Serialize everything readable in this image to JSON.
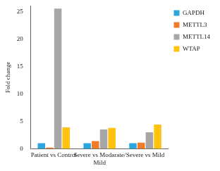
{
  "chart_data": {
    "type": "bar",
    "y_label": "Fold change",
    "categories": [
      "Patient vs Control",
      "Severe vs Modarate/ Mild",
      "Severe vs Mild"
    ],
    "series": [
      {
        "name": "GAPDH",
        "color": "#2ba6de",
        "values": [
          1.0,
          1.0,
          1.0
        ]
      },
      {
        "name": "METTL3",
        "color": "#f07c2a",
        "values": [
          0.2,
          1.4,
          1.1
        ]
      },
      {
        "name": "METTL14",
        "color": "#a6a6a6",
        "values": [
          25.5,
          3.5,
          3.0
        ]
      },
      {
        "name": "WTAP",
        "color": "#ffc20e",
        "values": [
          3.9,
          3.8,
          4.4
        ]
      }
    ],
    "ylim": [
      0,
      26
    ],
    "yticks": [
      0,
      5,
      10,
      15,
      20,
      25
    ],
    "grid": false,
    "legend": "right"
  }
}
